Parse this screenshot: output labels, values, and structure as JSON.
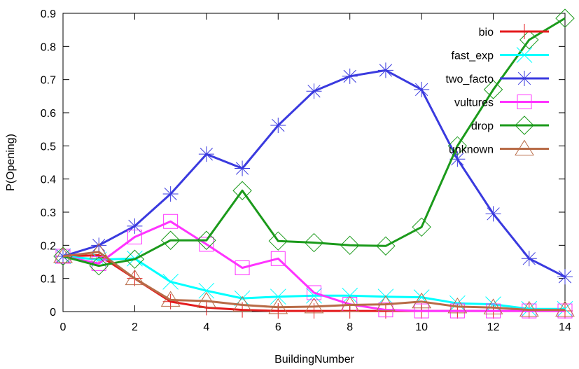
{
  "chart_data": {
    "type": "line",
    "xlabel": "BuildingNumber",
    "ylabel": "P(Opening)",
    "xlim": [
      0,
      14
    ],
    "ylim": [
      0,
      0.9
    ],
    "x": [
      0,
      1,
      2,
      3,
      4,
      5,
      6,
      7,
      8,
      9,
      10,
      11,
      12,
      13,
      14
    ],
    "xticks": [
      0,
      2,
      4,
      6,
      8,
      10,
      12,
      14
    ],
    "yticks": [
      0,
      0.1,
      0.2,
      0.3,
      0.4,
      0.5,
      0.6,
      0.7,
      0.8,
      0.9
    ],
    "xtick_labels": [
      "0",
      "2",
      "4",
      "6",
      "8",
      "10",
      "12",
      "14"
    ],
    "ytick_labels": [
      "0",
      "0.1",
      "0.2",
      "0.3",
      "0.4",
      "0.5",
      "0.6",
      "0.7",
      "0.8",
      "0.9"
    ],
    "grid": false,
    "legend_position": "top-right",
    "series": [
      {
        "name": "bio",
        "color": "#e41a1c",
        "marker": "plus",
        "values": [
          0.167,
          0.17,
          0.1,
          0.03,
          0.012,
          0.005,
          0.002,
          0.002,
          0.002,
          0.002,
          0.002,
          0.002,
          0.002,
          0.002,
          0.002
        ]
      },
      {
        "name": "fast_exp",
        "color": "#00ffff",
        "marker": "x",
        "values": [
          0.167,
          0.157,
          0.16,
          0.09,
          0.063,
          0.04,
          0.045,
          0.048,
          0.048,
          0.045,
          0.043,
          0.025,
          0.022,
          0.008,
          0.008
        ]
      },
      {
        "name": "two_facto",
        "color": "#3a3adf",
        "marker": "star",
        "values": [
          0.167,
          0.2,
          0.258,
          0.355,
          0.475,
          0.432,
          0.562,
          0.665,
          0.71,
          0.728,
          0.67,
          0.46,
          0.295,
          0.16,
          0.105
        ]
      },
      {
        "name": "vultures",
        "color": "#ff33ff",
        "marker": "square",
        "values": [
          0.167,
          0.145,
          0.225,
          0.272,
          0.203,
          0.132,
          0.16,
          0.057,
          0.022,
          0.005,
          0.002,
          0.002,
          0.002,
          0.002,
          0.002
        ]
      },
      {
        "name": "drop",
        "color": "#1b9a1b",
        "marker": "diamond",
        "values": [
          0.167,
          0.138,
          0.158,
          0.215,
          0.215,
          0.365,
          0.213,
          0.208,
          0.2,
          0.198,
          0.255,
          0.5,
          0.67,
          0.82,
          0.885
        ]
      },
      {
        "name": "unknown",
        "color": "#b86b47",
        "marker": "triangle",
        "values": [
          0.167,
          0.18,
          0.1,
          0.035,
          0.032,
          0.02,
          0.013,
          0.015,
          0.02,
          0.022,
          0.03,
          0.015,
          0.012,
          0.005,
          0.005
        ]
      }
    ]
  }
}
